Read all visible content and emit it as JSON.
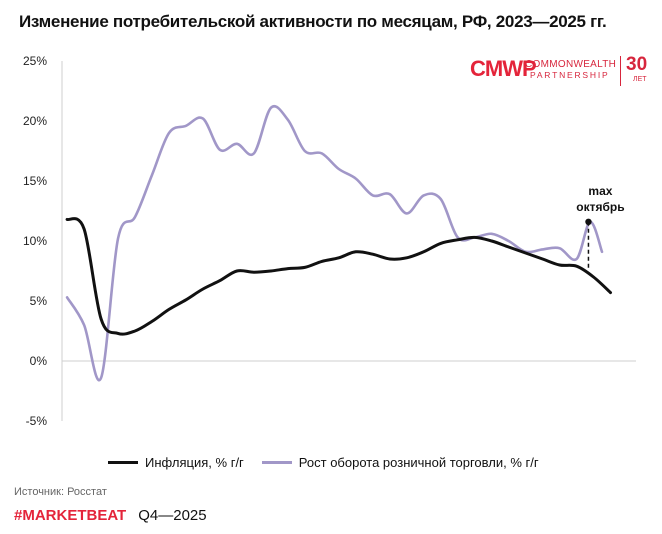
{
  "chart_data": {
    "type": "line",
    "title": "Изменение потребительской активности по месяцам, РФ, 2023—2025 гг.",
    "xlabel": "",
    "ylabel": "",
    "ylim": [
      -5,
      25
    ],
    "y_ticks": [
      -5,
      0,
      5,
      10,
      15,
      20,
      25
    ],
    "y_tick_labels": [
      "-5%",
      "0%",
      "5%",
      "10%",
      "15%",
      "20%",
      "25%"
    ],
    "x_range": [
      -0.3,
      33.5
    ],
    "gridlines": false,
    "legend_position": "bottom",
    "series": [
      {
        "name": "Инфляция, % г/г",
        "color": "#111111",
        "x": [
          0,
          1,
          2,
          3,
          4,
          5,
          6,
          7,
          8,
          9,
          10,
          11,
          12,
          13,
          14,
          15,
          16,
          17,
          18,
          19,
          20,
          21,
          22,
          23,
          24,
          25,
          26,
          27,
          28,
          29,
          30,
          31,
          32
        ],
        "values": [
          11.8,
          11.0,
          3.5,
          2.3,
          2.5,
          3.3,
          4.3,
          5.1,
          6.0,
          6.7,
          7.5,
          7.4,
          7.5,
          7.7,
          7.8,
          8.3,
          8.6,
          9.1,
          8.9,
          8.5,
          8.6,
          9.1,
          9.8,
          10.1,
          10.3,
          10.0,
          9.5,
          9.0,
          8.5,
          8.0,
          7.9,
          7.0,
          5.7
        ]
      },
      {
        "name": "Рост оборота розничной торговли, % г/г",
        "color": "#a197c8",
        "x": [
          0,
          1,
          2,
          3,
          4,
          5,
          6,
          7,
          8,
          9,
          10,
          11,
          12,
          13,
          14,
          15,
          16,
          17,
          18,
          19,
          20,
          21,
          22,
          23,
          24,
          25,
          26,
          27,
          28,
          29,
          30,
          30.8,
          31.5
        ],
        "values": [
          5.3,
          3.0,
          -1.4,
          10.2,
          12.0,
          15.5,
          19.0,
          19.6,
          20.2,
          17.6,
          18.1,
          17.3,
          21.1,
          20.1,
          17.5,
          17.3,
          16.0,
          15.2,
          13.8,
          13.9,
          12.3,
          13.8,
          13.5,
          10.3,
          10.3,
          10.6,
          10.0,
          9.1,
          9.3,
          9.4,
          8.5,
          11.6,
          9.1
        ]
      }
    ],
    "annotations": [
      {
        "text_line1": "max",
        "text_line2": "октябрь",
        "x": 30.7,
        "y_top": 11.6,
        "y_bottom": 7.7
      }
    ]
  },
  "legend": {
    "items": [
      {
        "label": "Инфляция, % г/г"
      },
      {
        "label": "Рост оборота розничной торговли, % г/г"
      }
    ]
  },
  "logo": {
    "mark": "CMWP",
    "line1": "COMMONWEALTH",
    "line2": "PARTNERSHIP",
    "number": "30",
    "sub": "ЛЕТ"
  },
  "source": "Источник: Росстат",
  "footer": {
    "brand": "#MARKETBEAT",
    "period": "Q4—2025"
  }
}
